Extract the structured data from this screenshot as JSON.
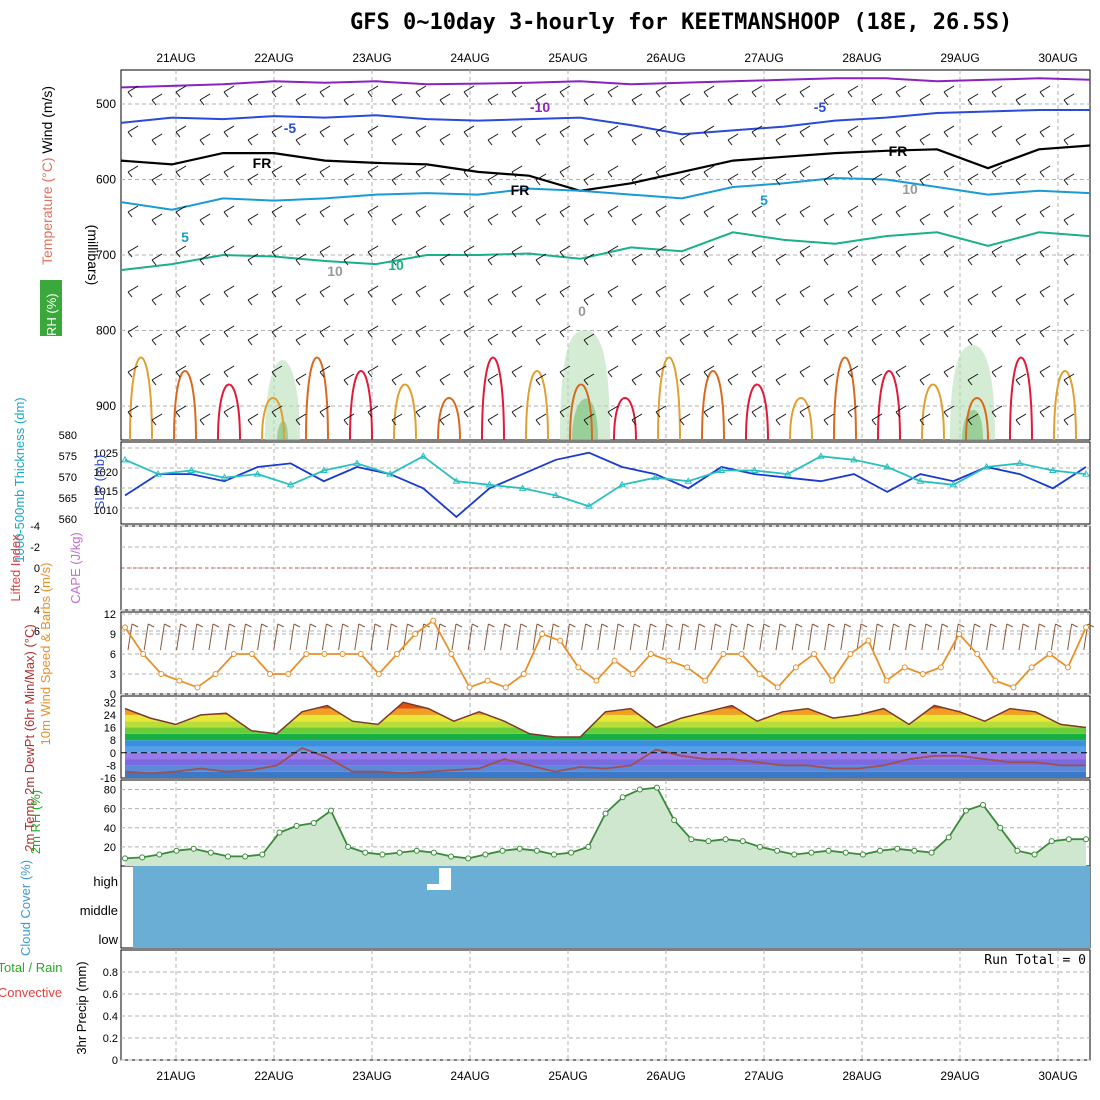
{
  "page": {
    "title": "GFS 0~10day 3-hourly for KEETMANSHOOP (18E, 26.5S)"
  },
  "colors": {
    "grid": "#b0b0b0",
    "temp_purple": "#8a22c0",
    "temp_blue": "#2a4ad8",
    "freezing": "#000000",
    "temp_cyan": "#1a9ad6",
    "temp_teal": "#1ab08a",
    "temp_orange": "#e0a030",
    "temp_darkorange": "#d86a20",
    "temp_red": "#e01a3a",
    "rh_green": "#3aa03a",
    "slp_line": "#1a3ad0",
    "thickness_line": "#2ac0c0",
    "wind10_line": "#e8902a",
    "barb": "#8a5a3a",
    "cloud_fill": "#6aaed6",
    "rh2m_green": "#1ec81e",
    "dewpt_line": "#a05050",
    "zero_line_red": "#e04040"
  },
  "chart_data": [
    {
      "type": "line",
      "panel": "sounding",
      "x_labels_top": [
        "21AUG",
        "22AUG",
        "23AUG",
        "24AUG",
        "25AUG",
        "26AUG",
        "27AUG",
        "28AUG",
        "29AUG",
        "30AUG"
      ],
      "y_axis_title": "(millibars)",
      "side_labels": [
        "Wind (m/s)",
        "Temperature (°C)",
        "RH (%)"
      ],
      "yticks": [
        500,
        600,
        700,
        800,
        900
      ],
      "ylim": [
        455,
        945
      ],
      "contour_labels": [
        "-10",
        "-5",
        "-5",
        "FR",
        "FR",
        "FR",
        "5",
        "5",
        "10",
        "10",
        "10",
        "0"
      ],
      "series": [
        {
          "label": "-10",
          "pressure": [
            478,
            476,
            474,
            470,
            472,
            470,
            474,
            473,
            472,
            470,
            474,
            472,
            470,
            468,
            466,
            466,
            470,
            468,
            466,
            468
          ]
        },
        {
          "label": "-5",
          "pressure": [
            525,
            518,
            520,
            516,
            518,
            515,
            520,
            522,
            520,
            518,
            528,
            540,
            535,
            530,
            522,
            518,
            512,
            510,
            508,
            508
          ]
        },
        {
          "label": "FR",
          "pressure": [
            575,
            580,
            565,
            565,
            575,
            578,
            580,
            590,
            595,
            615,
            605,
            590,
            575,
            570,
            565,
            562,
            560,
            585,
            560,
            555
          ]
        },
        {
          "label": "5",
          "pressure": [
            630,
            640,
            625,
            628,
            625,
            620,
            618,
            620,
            612,
            615,
            620,
            625,
            610,
            605,
            598,
            600,
            610,
            620,
            615,
            618
          ]
        },
        {
          "label": "10",
          "pressure": [
            720,
            712,
            700,
            702,
            708,
            712,
            700,
            700,
            698,
            705,
            690,
            695,
            670,
            680,
            685,
            675,
            670,
            688,
            670,
            675
          ]
        }
      ]
    },
    {
      "type": "line",
      "panel": "slp_thickness",
      "ylabel_left": "1000-500mb Thickness (dm)",
      "ylabel_right": "SLP (mb)",
      "left_ticks": [
        "560",
        "565",
        "570",
        "575",
        "580"
      ],
      "right_ticks": [
        "1010",
        "1015",
        "1020",
        "1025"
      ],
      "series": [
        {
          "name": "SLP (mb)",
          "values": [
            1014,
            1020,
            1020,
            1018,
            1022,
            1023,
            1018,
            1022,
            1020,
            1016,
            1008,
            1016,
            1020,
            1024,
            1026,
            1022,
            1020,
            1016,
            1022,
            1020,
            1019,
            1018,
            1020,
            1015,
            1020,
            1018,
            1022,
            1020,
            1016,
            1022
          ]
        },
        {
          "name": "1000-500mb Thickness (dm)",
          "values": [
            576,
            572,
            573,
            571,
            572,
            569,
            573,
            575,
            572,
            577,
            570,
            569,
            568,
            566,
            563,
            569,
            571,
            570,
            573,
            573,
            572,
            577,
            576,
            574,
            570,
            569,
            574,
            575,
            573,
            572
          ]
        }
      ]
    },
    {
      "type": "line",
      "panel": "cape_li",
      "ylabel_left": "Lifted Index",
      "ylabel_right": "CAPE (J/kg)",
      "left_ticks": [
        "-4",
        "-2",
        "0",
        "2",
        "4",
        "6"
      ],
      "series": [
        {
          "name": "Lifted Index",
          "values": []
        }
      ]
    },
    {
      "type": "line",
      "panel": "wind10m",
      "ylabel": "10m Wind Speed & Barbs (m/s)",
      "yticks": [
        "0",
        "3",
        "6",
        "9",
        "12"
      ],
      "ylim": [
        0,
        12
      ],
      "series": [
        {
          "name": "10m Wind Speed",
          "values": [
            10,
            6,
            3,
            2,
            1,
            3,
            6,
            6,
            3,
            3,
            6,
            6,
            6,
            6,
            3,
            6,
            9,
            11,
            6,
            1,
            2,
            1,
            3,
            9,
            8,
            4,
            2,
            5,
            3,
            6,
            5,
            4,
            2,
            6,
            6,
            3,
            1,
            4,
            6,
            2,
            6,
            8,
            2,
            4,
            3,
            4,
            9,
            6,
            2,
            1,
            4,
            6,
            4,
            10
          ]
        }
      ]
    },
    {
      "type": "area",
      "panel": "temp2m",
      "ylabel": "2m Temp 2m DewPt (6hr Min/Max) (°C)",
      "yticks": [
        "-16",
        "-8",
        "0",
        "8",
        "16",
        "24",
        "32"
      ],
      "ylim": [
        -16,
        36
      ],
      "series": [
        {
          "name": "2m Temp",
          "values": [
            28,
            22,
            18,
            24,
            25,
            14,
            12,
            26,
            30,
            20,
            18,
            32,
            28,
            20,
            26,
            20,
            12,
            10,
            10,
            26,
            28,
            16,
            22,
            26,
            30,
            20,
            26,
            28,
            22,
            24,
            28,
            18,
            30,
            26,
            20,
            28,
            26,
            18,
            16
          ]
        },
        {
          "name": "2m DewPt",
          "values": [
            -12,
            -13,
            -12,
            -10,
            -12,
            -11,
            -8,
            3,
            -3,
            -12,
            -12,
            -13,
            -12,
            -11,
            -10,
            -4,
            -8,
            -12,
            -9,
            -10,
            -8,
            2,
            -2,
            -4,
            -4,
            -6,
            -8,
            -8,
            -10,
            -10,
            -8,
            -4,
            -2,
            -2,
            -4,
            -6,
            -6,
            -8,
            -8
          ]
        }
      ]
    },
    {
      "type": "area",
      "panel": "rh2m",
      "ylabel": "2m RH (%)",
      "yticks": [
        "20",
        "40",
        "60",
        "80"
      ],
      "ylim": [
        0,
        90
      ],
      "series": [
        {
          "name": "2m RH",
          "values": [
            8,
            9,
            12,
            16,
            18,
            14,
            10,
            10,
            12,
            35,
            42,
            45,
            58,
            20,
            14,
            12,
            14,
            16,
            14,
            10,
            8,
            12,
            16,
            18,
            16,
            12,
            14,
            20,
            55,
            72,
            80,
            82,
            48,
            28,
            26,
            28,
            26,
            20,
            16,
            12,
            14,
            16,
            14,
            12,
            16,
            18,
            16,
            14,
            30,
            58,
            64,
            40,
            16,
            12,
            26,
            28,
            28
          ]
        }
      ]
    },
    {
      "type": "heatmap",
      "panel": "cloud",
      "ylabel": "Cloud Cover (%)",
      "yticks": [
        "high",
        "middle",
        "low"
      ]
    },
    {
      "type": "bar",
      "panel": "precip",
      "ylabel": "3hr Precip (mm)",
      "side_labels": [
        "Total / Rain",
        "Convective"
      ],
      "yticks": [
        "0",
        "0.2",
        "0.4",
        "0.6",
        "0.8"
      ],
      "ylim": [
        0,
        1
      ],
      "annotation": "Run Total = 0",
      "values": [],
      "x_labels_bottom": [
        "21AUG",
        "22AUG",
        "23AUG",
        "24AUG",
        "25AUG",
        "26AUG",
        "27AUG",
        "28AUG",
        "29AUG",
        "30AUG"
      ]
    }
  ]
}
